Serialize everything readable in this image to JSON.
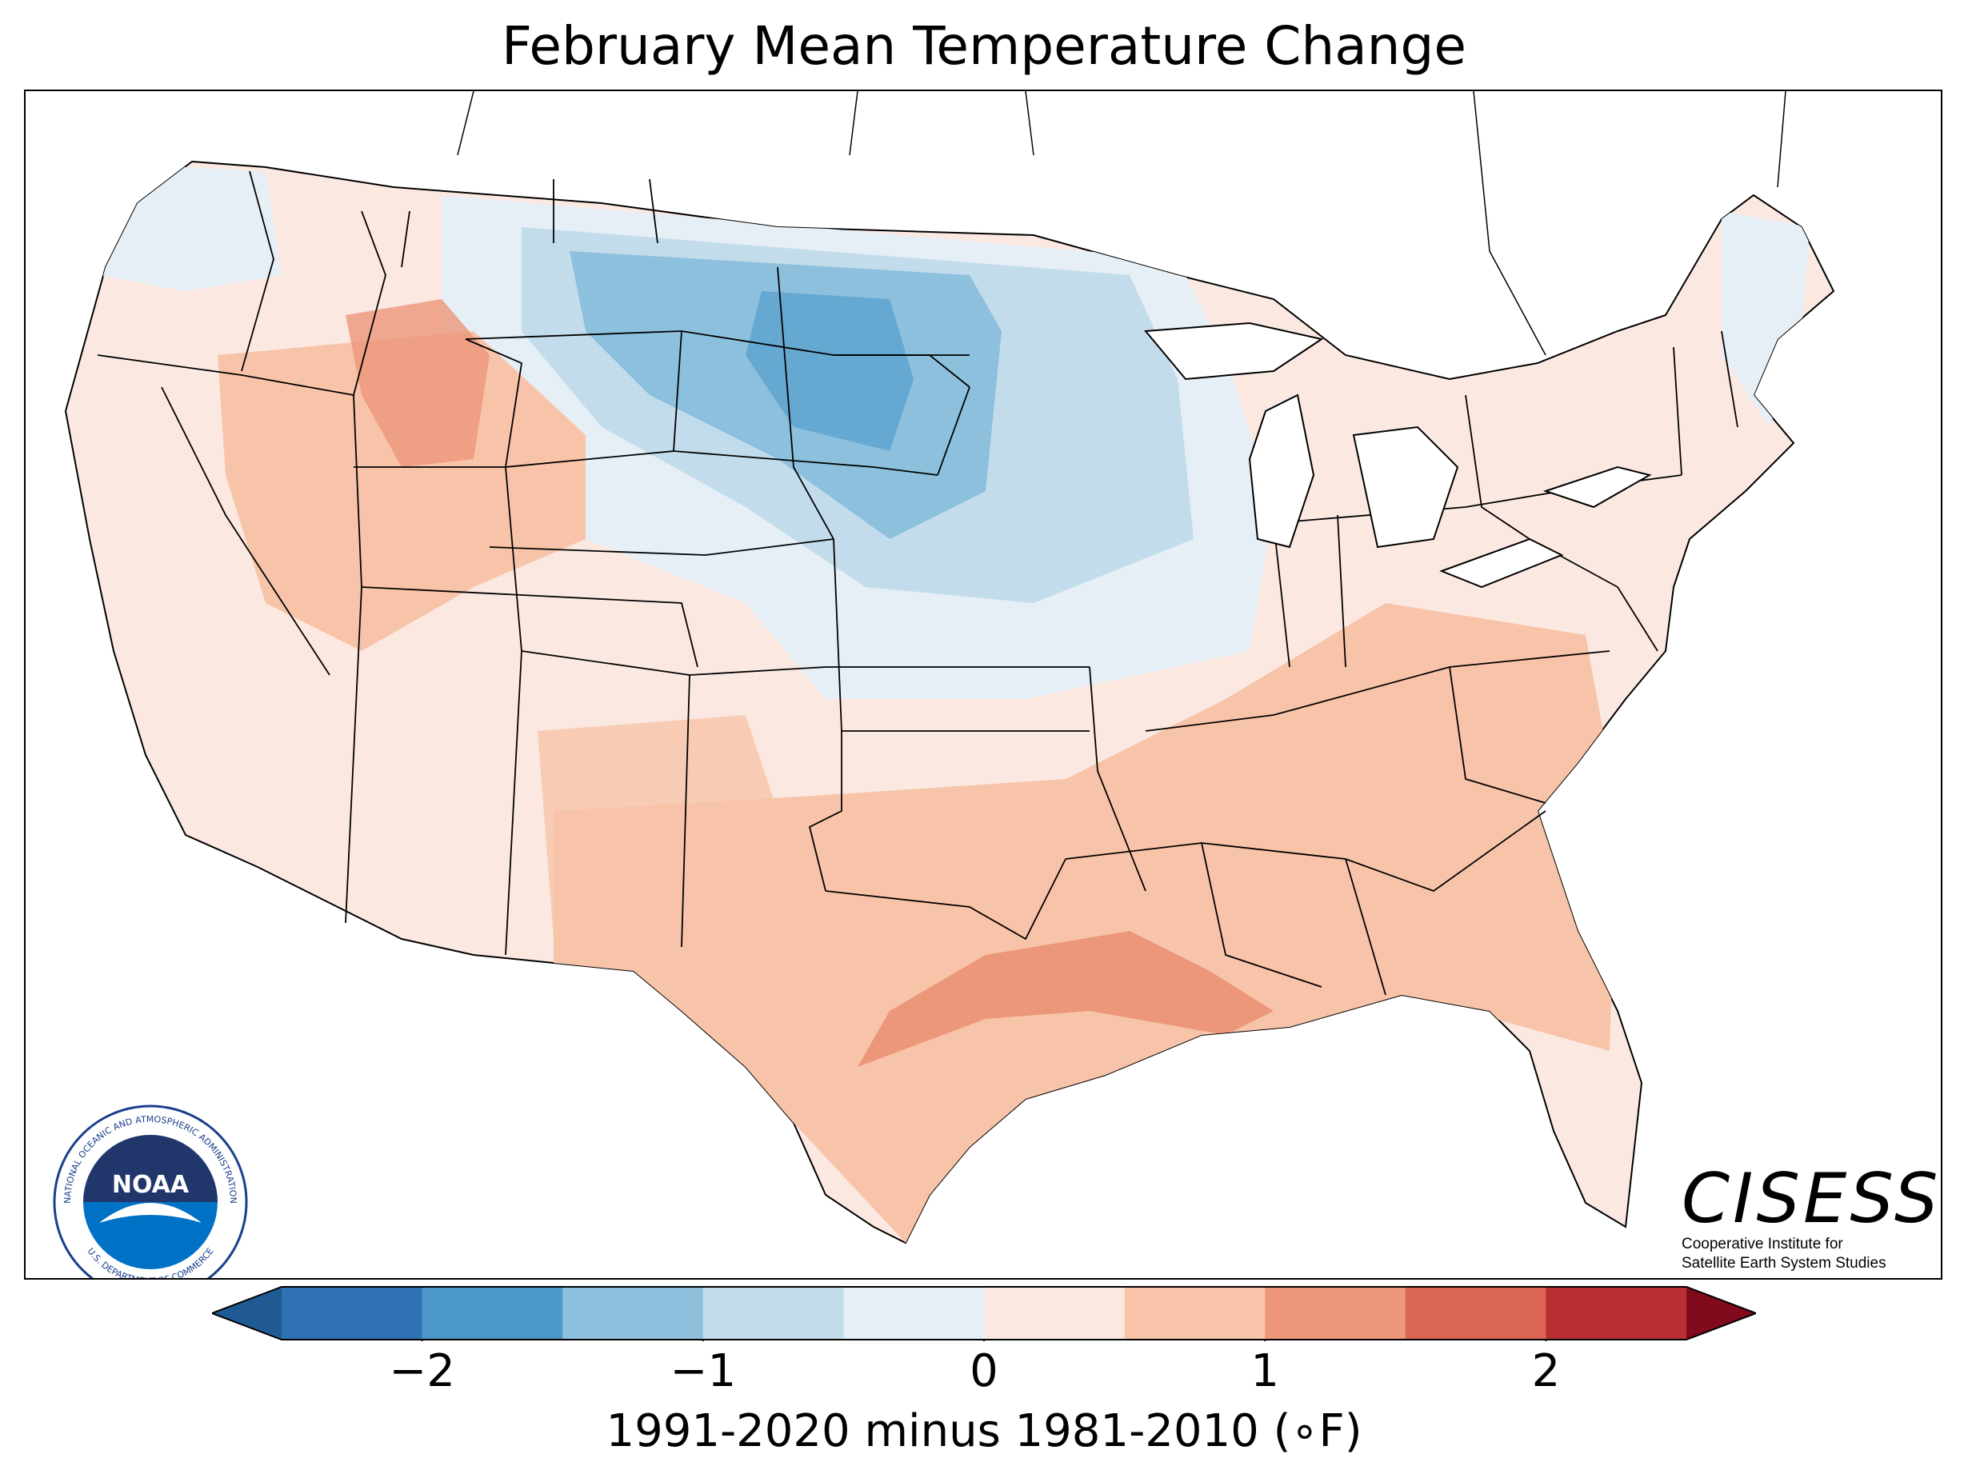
{
  "title": "February Mean Temperature Change",
  "colorbar": {
    "label": "1991-2020 minus 1981-2010 (∘F)",
    "ticks": [
      {
        "value": -2,
        "label": "−2"
      },
      {
        "value": -1,
        "label": "−1"
      },
      {
        "value": 0,
        "label": "0"
      },
      {
        "value": 1,
        "label": "1"
      },
      {
        "value": 2,
        "label": "2"
      }
    ],
    "range": [
      -2.5,
      2.5
    ],
    "step": 0.5,
    "colors": [
      "#1f5a94",
      "#2e72b4",
      "#4b98c9",
      "#8dc0dd",
      "#c2dcec",
      "#e6eff5",
      "#fbe9e1",
      "#f8c4a9",
      "#ec967a",
      "#da6653",
      "#b72f33",
      "#820a1d"
    ],
    "extend": "both"
  },
  "logos": {
    "noaa": {
      "center_text": "NOAA",
      "ring_top": "NATIONAL OCEANIC AND ATMOSPHERIC ADMINISTRATION",
      "ring_bottom": "U.S. DEPARTMENT OF COMMERCE"
    },
    "cisess": {
      "name": "CISESS",
      "line1": "Cooperative Institute for",
      "line2": "Satellite Earth System Studies"
    }
  },
  "colors": {
    "land_neutral_warm": "#fbe9e1",
    "land_neutral_cool": "#e6eff5",
    "boundary": "#000000"
  }
}
